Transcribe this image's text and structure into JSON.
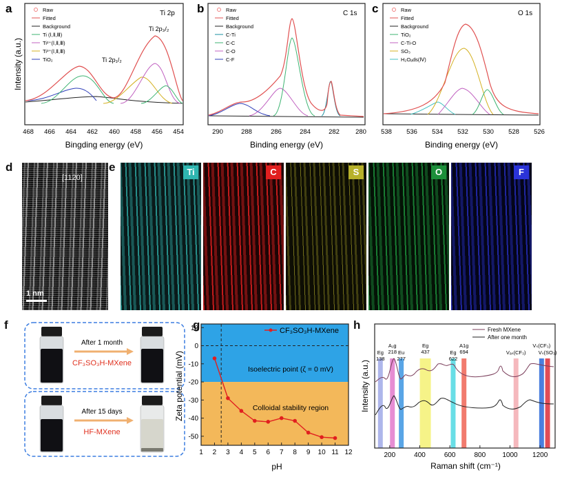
{
  "panels": {
    "a": {
      "letter": "a",
      "title": "Ti 2p",
      "xlabel": "Bingding energy (eV)",
      "ylabel": "Intensity (a.u.)",
      "xticks": [
        "468",
        "466",
        "464",
        "462",
        "460",
        "458",
        "456",
        "454"
      ],
      "legend": [
        "Raw",
        "Fitted",
        "Background",
        "Ti (Ⅰ,Ⅱ,Ⅲ)",
        "Ti²⁺(Ⅰ,Ⅱ,Ⅲ)",
        "Ti³⁺(Ⅰ,Ⅱ,Ⅲ)",
        "TiO₂"
      ],
      "annotations": [
        "Ti 2p₃/₂",
        "Ti 2p₁/₂"
      ]
    },
    "b": {
      "letter": "b",
      "title": "C 1s",
      "xlabel": "Binding energy (eV)",
      "xticks": [
        "290",
        "288",
        "286",
        "284",
        "282",
        "280"
      ],
      "legend": [
        "Raw",
        "Fitted",
        "Background",
        "C-Ti",
        "C-C",
        "C-O",
        "C-F"
      ]
    },
    "c": {
      "letter": "c",
      "title": "O 1s",
      "xlabel": "Binding energy (eV)",
      "xticks": [
        "538",
        "536",
        "534",
        "532",
        "530",
        "528",
        "526"
      ],
      "legend": [
        "Raw",
        "Fitted",
        "Background",
        "TiO₂",
        "C-Ti-O",
        "SO₃",
        "H₂Oₐds(Ⅳ)"
      ]
    },
    "d": {
      "letter": "d",
      "direction": "[1120]",
      "scalebar": "1 nm"
    },
    "e": {
      "letter": "e",
      "maps": [
        {
          "element": "Ti",
          "color": "#2fb5b0"
        },
        {
          "element": "C",
          "color": "#e11f1f"
        },
        {
          "element": "S",
          "color": "#b7b12a"
        },
        {
          "element": "O",
          "color": "#1c8f3a"
        },
        {
          "element": "F",
          "color": "#2a33d8"
        }
      ]
    },
    "f": {
      "letter": "f",
      "top_arrow": "After 1 month",
      "top_sample": "CF₃SO₃H-MXene",
      "bottom_arrow": "After 15 days",
      "bottom_sample": "HF-MXene"
    },
    "g": {
      "letter": "g",
      "xlabel": "pH",
      "ylabel": "Zeta potential (mV)",
      "legend": "CF₃SO₃H-MXene",
      "region_top": "Isoelectric point (ζ = 0 mV)",
      "region_bottom": "Colloidal stability region"
    },
    "h": {
      "letter": "h",
      "xlabel": "Raman shift (cm⁻¹)",
      "ylabel": "Intensity (a.u.)",
      "legend": [
        "Fresh MXene",
        "After one month"
      ],
      "xticks": [
        "200",
        "400",
        "600",
        "800",
        "1000",
        "1200"
      ]
    }
  },
  "chart_data": [
    {
      "panel": "g",
      "type": "line",
      "x": [
        2,
        3,
        4,
        5,
        6,
        7,
        8,
        9,
        10,
        11
      ],
      "series": [
        {
          "name": "CF₃SO₃H-MXene",
          "values": [
            -7,
            -29,
            -36,
            -41.5,
            -42,
            -40,
            -41.5,
            -48,
            -50.5,
            -51
          ]
        }
      ],
      "xlabel": "pH",
      "ylabel": "Zeta potential (mV)",
      "xlim": [
        1,
        12
      ],
      "ylim": [
        -55,
        12
      ],
      "xticks": [
        1,
        2,
        3,
        4,
        5,
        6,
        7,
        8,
        9,
        10,
        11,
        12
      ],
      "yticks": [
        10,
        0,
        -10,
        -20,
        -30,
        -40,
        -50
      ],
      "grid": false,
      "legend": "top-right",
      "annotations": [
        "Isoelectric point (ζ = 0 mV)",
        "Colloidal stability region"
      ]
    },
    {
      "panel": "h",
      "type": "line",
      "xlabel": "Raman shift (cm⁻¹)",
      "ylabel": "Intensity (a.u.)",
      "xlim": [
        100,
        1300
      ],
      "peaks": [
        {
          "label": "Eg",
          "value": "138",
          "x": 138,
          "color": "#9aa4e6"
        },
        {
          "label": "A₁g",
          "value": "218",
          "x": 218,
          "color": "#e070c8"
        },
        {
          "label": "Eu",
          "value": "277",
          "x": 277,
          "color": "#2f8fe0"
        },
        {
          "label": "Eg",
          "value": "437",
          "x": 437,
          "color": "#f4f06a"
        },
        {
          "label": "Eg",
          "value": "622",
          "x": 622,
          "color": "#44d6e0"
        },
        {
          "label": "A1g",
          "value": "694",
          "x": 694,
          "color": "#ee5a4a"
        },
        {
          "label": "Vₐₛ(CF₃)",
          "value": "",
          "x": 1040,
          "color": "#f2a6ad"
        },
        {
          "label": "Vₛ(CF₃)",
          "value": "",
          "x": 1210,
          "color": "#1e5fd6"
        },
        {
          "label": "Vₛ(SO₃)",
          "value": "",
          "x": 1250,
          "color": "#d91f2a"
        }
      ],
      "series": [
        {
          "name": "Fresh MXene"
        },
        {
          "name": "After one month"
        }
      ],
      "legend": "top-right"
    }
  ]
}
